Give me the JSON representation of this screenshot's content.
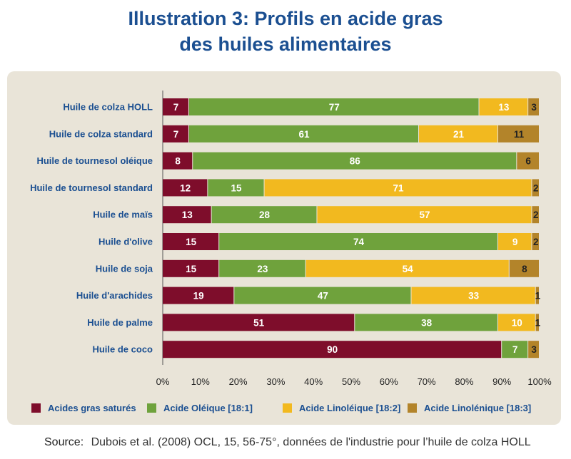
{
  "title_line1": "Illustration 3: Profils en acide gras",
  "title_line2": "des huiles alimentaires",
  "source_label": "Source:",
  "source_text": "Dubois et al. (2008) OCL, 15, 56-75°, données de l'industrie pour l’huile de colza HOLL",
  "chart_data": {
    "type": "bar",
    "orientation": "horizontal",
    "stacked": "percent",
    "categories": [
      "Huile de colza HOLL",
      "Huile de colza standard",
      "Huile de tournesol oléique",
      "Huile de tournesol standard",
      "Huile de maïs",
      "Huile d'olive",
      "Huile de soja",
      "Huile d'arachides",
      "Huile de palme",
      "Huile de coco"
    ],
    "series": [
      {
        "name": "Acides gras saturés",
        "color": "#7e0d2b",
        "values": [
          7,
          7,
          8,
          12,
          13,
          15,
          15,
          19,
          51,
          90
        ]
      },
      {
        "name": "Acide Oléique [18:1]",
        "color": "#6fa23c",
        "values": [
          77,
          61,
          86,
          15,
          28,
          74,
          23,
          47,
          38,
          7
        ]
      },
      {
        "name": "Acide Linoléique [18:2]",
        "color": "#f2b91f",
        "values": [
          13,
          21,
          0,
          71,
          57,
          9,
          54,
          33,
          10,
          0
        ]
      },
      {
        "name": "Acide Linolénique [18:3]",
        "color": "#b3842a",
        "values": [
          3,
          11,
          6,
          2,
          2,
          2,
          8,
          1,
          1,
          3
        ]
      }
    ],
    "xlim": [
      0,
      100
    ],
    "xticks": [
      "0%",
      "10%",
      "20%",
      "30%",
      "40%",
      "50%",
      "60%",
      "70%",
      "80%",
      "90%",
      "100%"
    ],
    "legend_position": "bottom",
    "category_label_color": "#1b4f91",
    "grid": false
  }
}
